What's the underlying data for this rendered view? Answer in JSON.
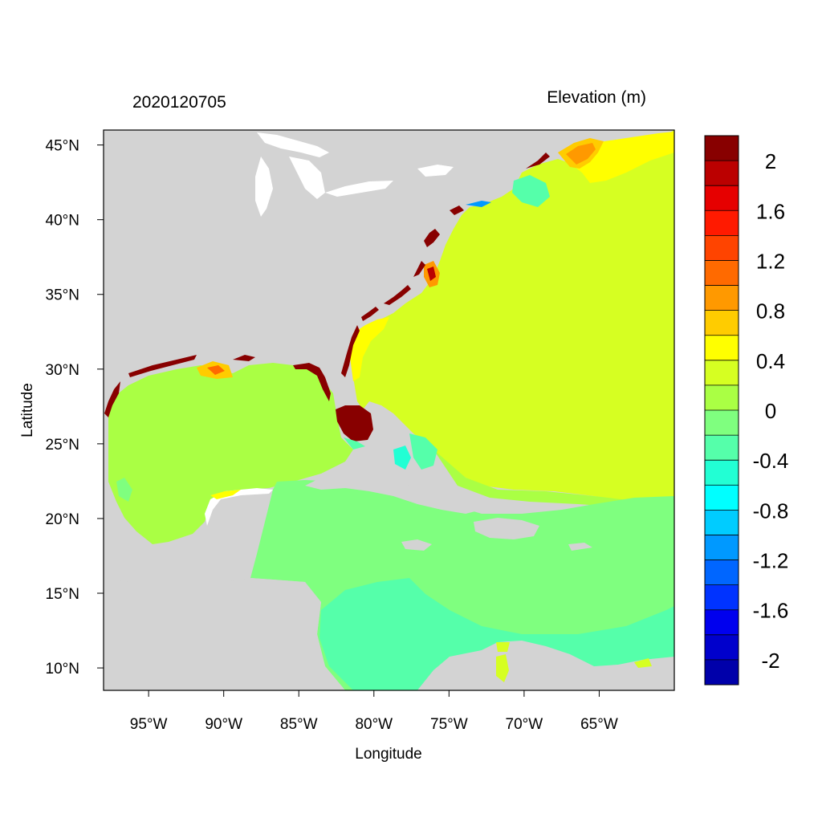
{
  "title_left": "2020120705",
  "title_right": "Elevation (m)",
  "x_axis_label": "Longitude",
  "y_axis_label": "Latitude",
  "colors": {
    "land": "#d3d3d3",
    "frame": "#000000"
  },
  "x_ticks": [
    {
      "value": -95,
      "label": "95°W"
    },
    {
      "value": -90,
      "label": "90°W"
    },
    {
      "value": -85,
      "label": "85°W"
    },
    {
      "value": -80,
      "label": "80°W"
    },
    {
      "value": -75,
      "label": "75°W"
    },
    {
      "value": -70,
      "label": "70°W"
    },
    {
      "value": -65,
      "label": "65°W"
    }
  ],
  "y_ticks": [
    {
      "value": 45,
      "label": "45°N"
    },
    {
      "value": 40,
      "label": "40°N"
    },
    {
      "value": 35,
      "label": "35°N"
    },
    {
      "value": 30,
      "label": "30°N"
    },
    {
      "value": 25,
      "label": "25°N"
    },
    {
      "value": 20,
      "label": "20°N"
    },
    {
      "value": 15,
      "label": "15°N"
    },
    {
      "value": 10,
      "label": "10°N"
    }
  ],
  "extent": {
    "lon": [
      -98,
      -60
    ],
    "lat": [
      8.5,
      46
    ]
  },
  "legend": {
    "colors": [
      "#880000",
      "#bb0000",
      "#e60000",
      "#ff1a00",
      "#ff4400",
      "#ff6a00",
      "#ff9900",
      "#ffcc00",
      "#ffff00",
      "#d6ff22",
      "#aaff44",
      "#7fff7f",
      "#55ffaa",
      "#22ffd4",
      "#00ffff",
      "#00ccff",
      "#0099ff",
      "#0066ff",
      "#0033ff",
      "#0000ee",
      "#0000cc",
      "#0000aa"
    ],
    "labels": [
      {
        "value": 2,
        "label": "2"
      },
      {
        "value": 1.6,
        "label": "1.6"
      },
      {
        "value": 1.2,
        "label": "1.2"
      },
      {
        "value": 0.8,
        "label": "0.8"
      },
      {
        "value": 0.4,
        "label": "0.4"
      },
      {
        "value": 0,
        "label": "0"
      },
      {
        "value": -0.4,
        "label": "-0.4"
      },
      {
        "value": -0.8,
        "label": "-0.8"
      },
      {
        "value": -1.2,
        "label": "-1.2"
      },
      {
        "value": -1.6,
        "label": "-1.6"
      },
      {
        "value": -2,
        "label": "-2"
      }
    ]
  }
}
